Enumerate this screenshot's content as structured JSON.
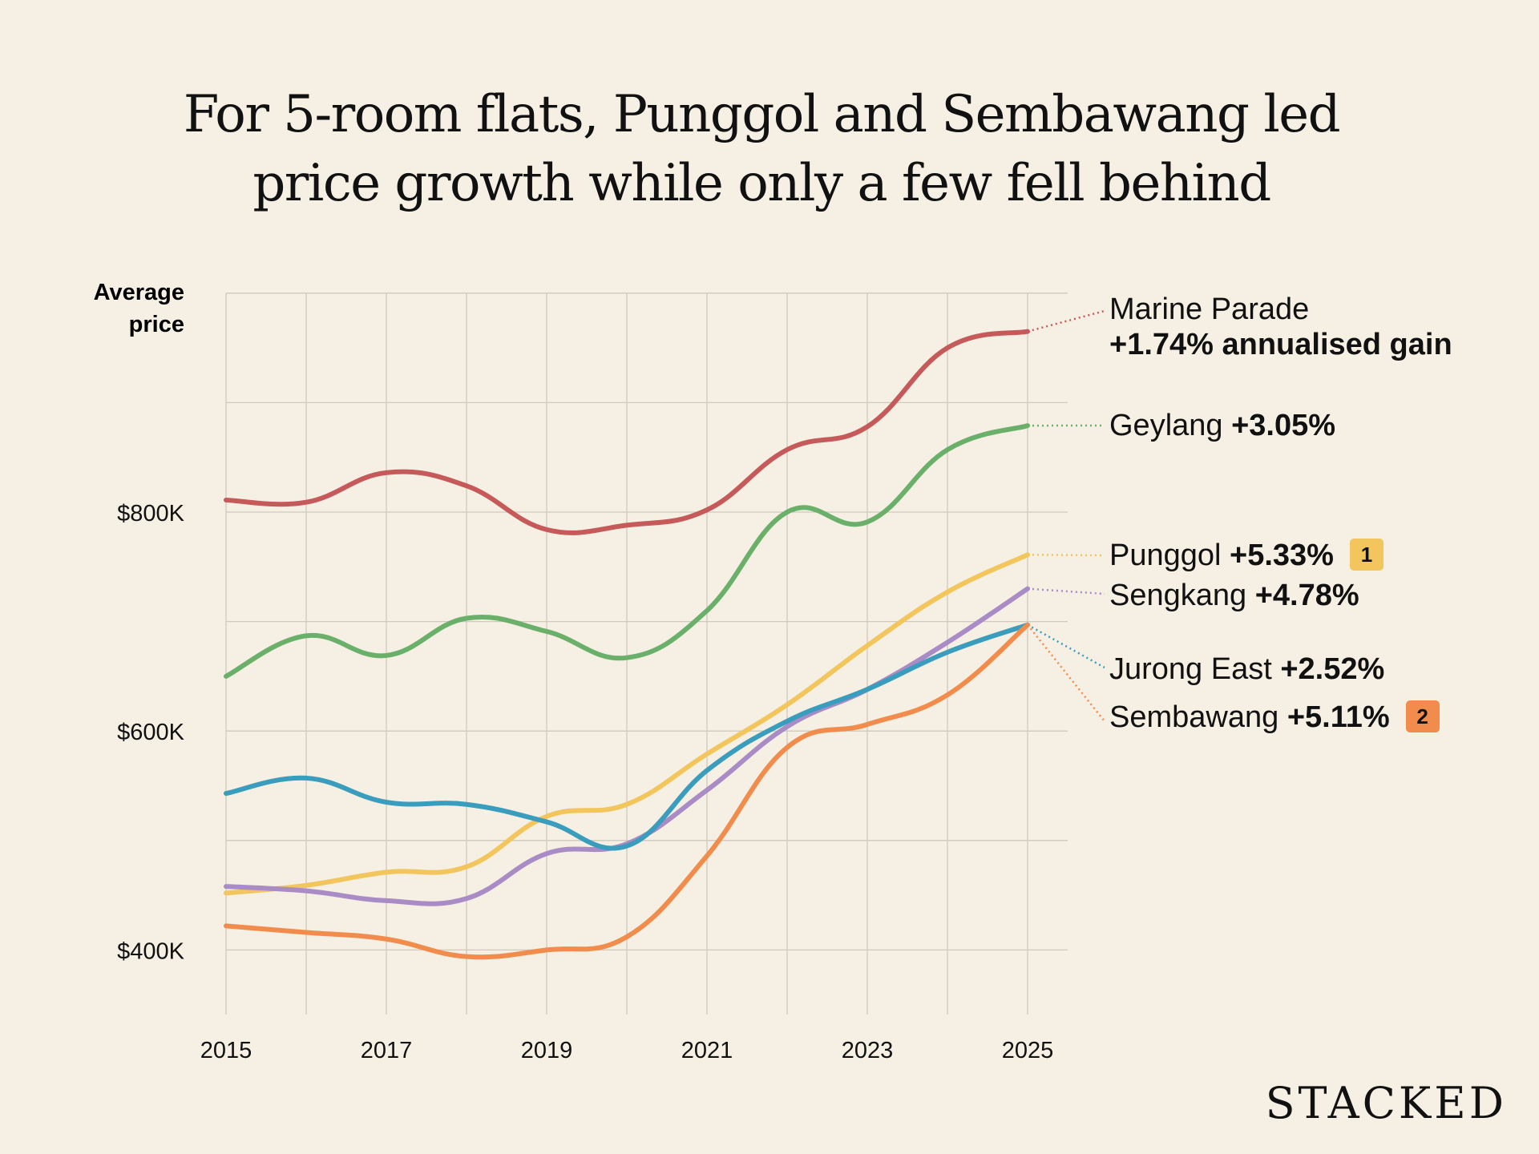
{
  "title_lines": [
    "For 5-room flats, Punggol and Sembawang led",
    "price growth while only a few fell behind"
  ],
  "logo": "STACKED",
  "chart_data": {
    "type": "line",
    "title": "For 5-room flats, Punggol and Sembawang led price growth while only a few fell behind",
    "ylabel": "Average price",
    "ylabel_lines": [
      "Average",
      "price"
    ],
    "xlabel": "",
    "x": [
      2015,
      2016,
      2017,
      2018,
      2019,
      2020,
      2021,
      2022,
      2023,
      2024,
      2025
    ],
    "x_tick_labels": [
      "2015",
      "2017",
      "2019",
      "2021",
      "2023",
      "2025"
    ],
    "y_tick_labels": [
      "$400K",
      "$600K",
      "$800K"
    ],
    "y_ticks": [
      400000,
      600000,
      800000
    ],
    "ylim": [
      340000,
      1000000
    ],
    "xlim": [
      2015,
      2025.5
    ],
    "grid": true,
    "legend": "direct labels at right",
    "series": [
      {
        "name": "Marine Parade",
        "label_value": "+1.74% annualised gain",
        "color": "#c65a5a",
        "values": [
          811000,
          809000,
          836000,
          824000,
          784000,
          788000,
          802000,
          857000,
          878000,
          950000,
          965000
        ]
      },
      {
        "name": "Geylang",
        "label_value": "+3.05%",
        "color": "#6bb06a",
        "values": [
          650000,
          687000,
          669000,
          703000,
          691000,
          667000,
          710000,
          800000,
          791000,
          857000,
          879000
        ]
      },
      {
        "name": "Punggol",
        "label_value": "+5.33%",
        "color": "#f2c65c",
        "badge": "1",
        "values": [
          452000,
          459000,
          471000,
          476000,
          522000,
          533000,
          579000,
          624000,
          678000,
          727000,
          761000
        ]
      },
      {
        "name": "Sengkang",
        "label_value": "+4.78%",
        "color": "#a98bc6",
        "values": [
          458000,
          454000,
          445000,
          447000,
          488000,
          497000,
          546000,
          604000,
          638000,
          681000,
          730000
        ]
      },
      {
        "name": "Jurong East",
        "label_value": "+2.52%",
        "color": "#3a9dbd",
        "values": [
          543000,
          557000,
          535000,
          533000,
          517000,
          495000,
          564000,
          609000,
          638000,
          672000,
          697000
        ]
      },
      {
        "name": "Sembawang",
        "label_value": "+5.11%",
        "color": "#f28c4c",
        "badge": "2",
        "values": [
          422000,
          416000,
          410000,
          394000,
          400000,
          412000,
          486000,
          585000,
          606000,
          633000,
          697000
        ]
      }
    ]
  }
}
